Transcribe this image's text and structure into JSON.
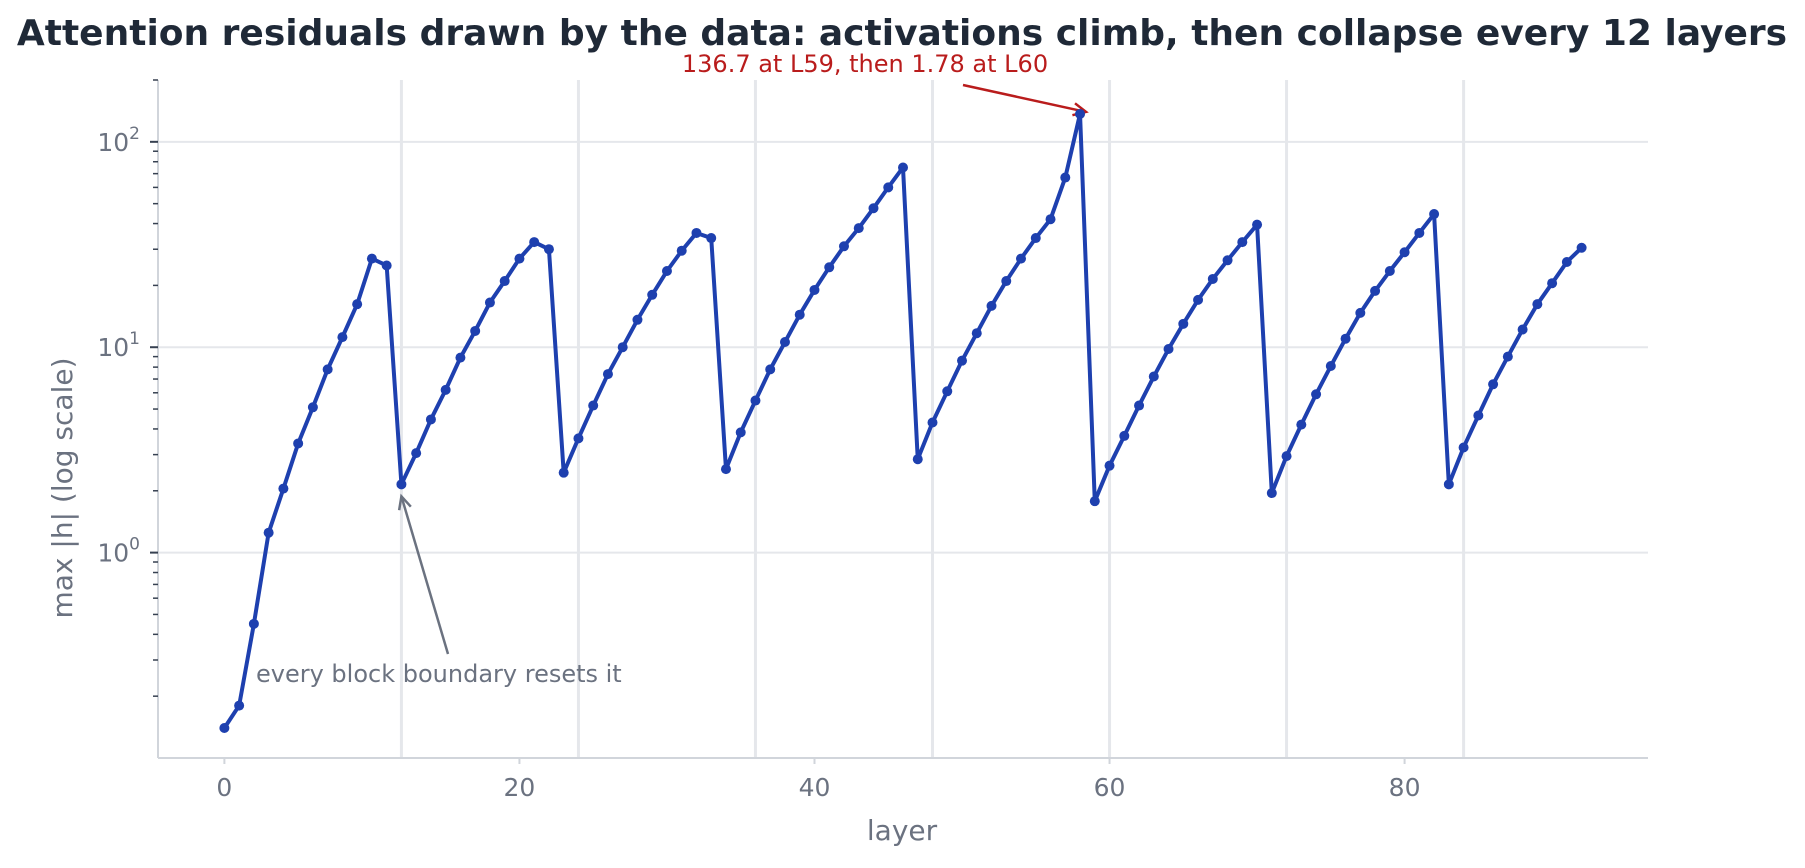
{
  "chart_data": {
    "type": "line",
    "title": "Attention residuals drawn by the data: activations climb, then collapse every 12 layers",
    "xlabel": "layer",
    "ylabel": "max |h| (log scale)",
    "x_scale": "linear",
    "y_scale": "log",
    "xlim": [
      -4.5,
      96.5
    ],
    "ylim": [
      0.1,
      200
    ],
    "x_ticks": [
      0,
      20,
      40,
      60,
      80
    ],
    "y_ticks": [
      {
        "value": 1,
        "base": "10",
        "exp": "0"
      },
      {
        "value": 10,
        "base": "10",
        "exp": "1"
      },
      {
        "value": 100,
        "base": "10",
        "exp": "2"
      }
    ],
    "block_boundaries": [
      12,
      24,
      36,
      48,
      60,
      72,
      84
    ],
    "grid": true,
    "colors": {
      "line": "#1e40af",
      "point": "#1e40af",
      "grid": "#e5e7eb",
      "boundary": "#e5e7eb",
      "axis": "#d1d5db",
      "red_annotation": "#b91c1c",
      "gray_annotation": "#6b7280"
    },
    "series": [
      {
        "x": [
          0,
          1,
          2,
          3,
          4,
          5,
          6,
          7,
          8,
          9,
          10,
          11,
          12,
          13,
          14,
          15,
          16,
          17,
          18,
          19,
          20,
          21,
          22,
          23,
          24,
          25,
          26,
          27,
          28,
          29,
          30,
          31,
          32,
          33,
          34,
          35,
          36,
          37,
          38,
          39,
          40,
          41,
          42,
          43,
          44,
          45,
          46,
          47,
          48,
          49,
          50,
          51,
          52,
          53,
          54,
          55,
          56,
          57,
          58,
          59,
          60,
          61,
          62,
          63,
          64,
          65,
          66,
          67,
          68,
          69,
          70,
          71,
          72,
          73,
          74,
          75,
          76,
          77,
          78,
          79,
          80,
          81,
          82,
          83,
          84,
          85,
          86,
          87,
          88,
          89,
          90,
          91,
          92
        ],
        "y": [
          0.14,
          0.18,
          0.45,
          1.25,
          2.05,
          3.4,
          5.1,
          7.8,
          11.2,
          16.2,
          27,
          25,
          2.15,
          3.05,
          4.45,
          6.2,
          8.9,
          12,
          16.5,
          21,
          27,
          32.5,
          30,
          2.45,
          3.6,
          5.2,
          7.4,
          10,
          13.6,
          18,
          23.5,
          29.5,
          36,
          34,
          2.55,
          3.85,
          5.5,
          7.8,
          10.6,
          14.4,
          19,
          24.5,
          31,
          38,
          47.5,
          60,
          75,
          2.85,
          4.3,
          6.1,
          8.6,
          11.7,
          15.9,
          21,
          27,
          34,
          42,
          67,
          136.7,
          1.78,
          2.65,
          3.7,
          5.2,
          7.2,
          9.8,
          13,
          17,
          21.5,
          26.5,
          32.5,
          39.5,
          1.95,
          2.95,
          4.2,
          5.9,
          8.1,
          11,
          14.7,
          18.8,
          23.5,
          29,
          36,
          44.5,
          2.15,
          3.25,
          4.65,
          6.6,
          9,
          12.2,
          16.2,
          20.5,
          26,
          30.5
        ]
      }
    ],
    "annotations": [
      {
        "text": "136.7 at L59, then 1.78 at L60",
        "x": 58,
        "y": 136.7,
        "color": "#b91c1c"
      },
      {
        "text": "every block boundary resets it",
        "x": 12,
        "y": 2.15,
        "color": "#6b7280"
      }
    ]
  }
}
